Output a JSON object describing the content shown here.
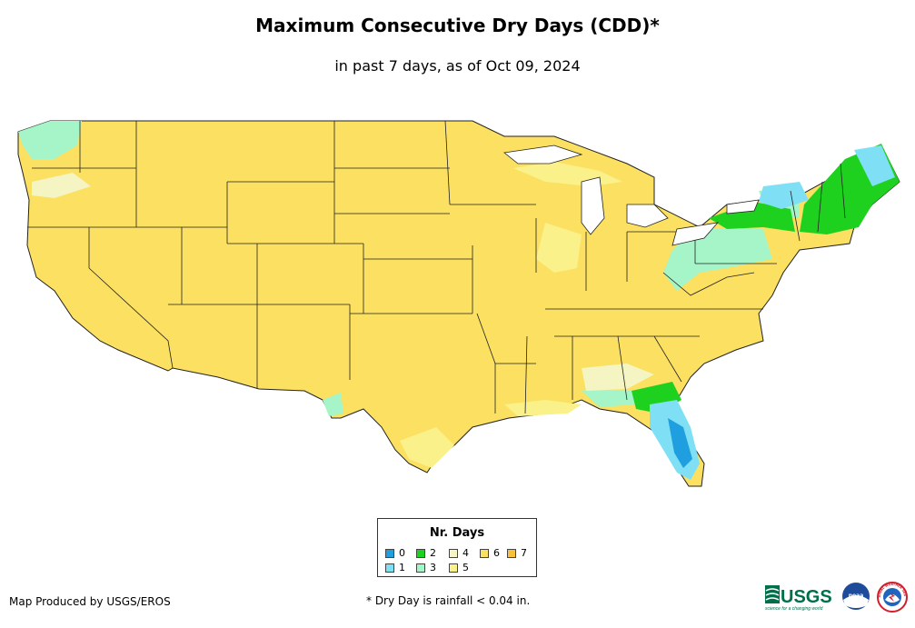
{
  "header": {
    "title": "Maximum Consecutive Dry Days (CDD)*",
    "subtitle": "in past 7 days, as of Oct 09, 2024"
  },
  "legend": {
    "title": "Nr. Days",
    "items": [
      {
        "label": "0",
        "color": "#1f9fe0"
      },
      {
        "label": "1",
        "color": "#7fe0f5"
      },
      {
        "label": "2",
        "color": "#1fd11f"
      },
      {
        "label": "3",
        "color": "#a6f5c8"
      },
      {
        "label": "4",
        "color": "#f4f5c2"
      },
      {
        "label": "5",
        "color": "#fbf18a"
      },
      {
        "label": "6",
        "color": "#fbe061"
      },
      {
        "label": "7",
        "color": "#f7c23a"
      }
    ]
  },
  "footer": {
    "credit": "Map Produced by USGS/EROS",
    "footnote": "* Dry Day is rainfall < 0.04 in.",
    "usgs_logo_text": "USGS",
    "usgs_tagline": "science for a changing world",
    "noaa_logo_text": "noaa",
    "nws_logo_text": "NATIONAL WEATHER SERVICE"
  }
}
